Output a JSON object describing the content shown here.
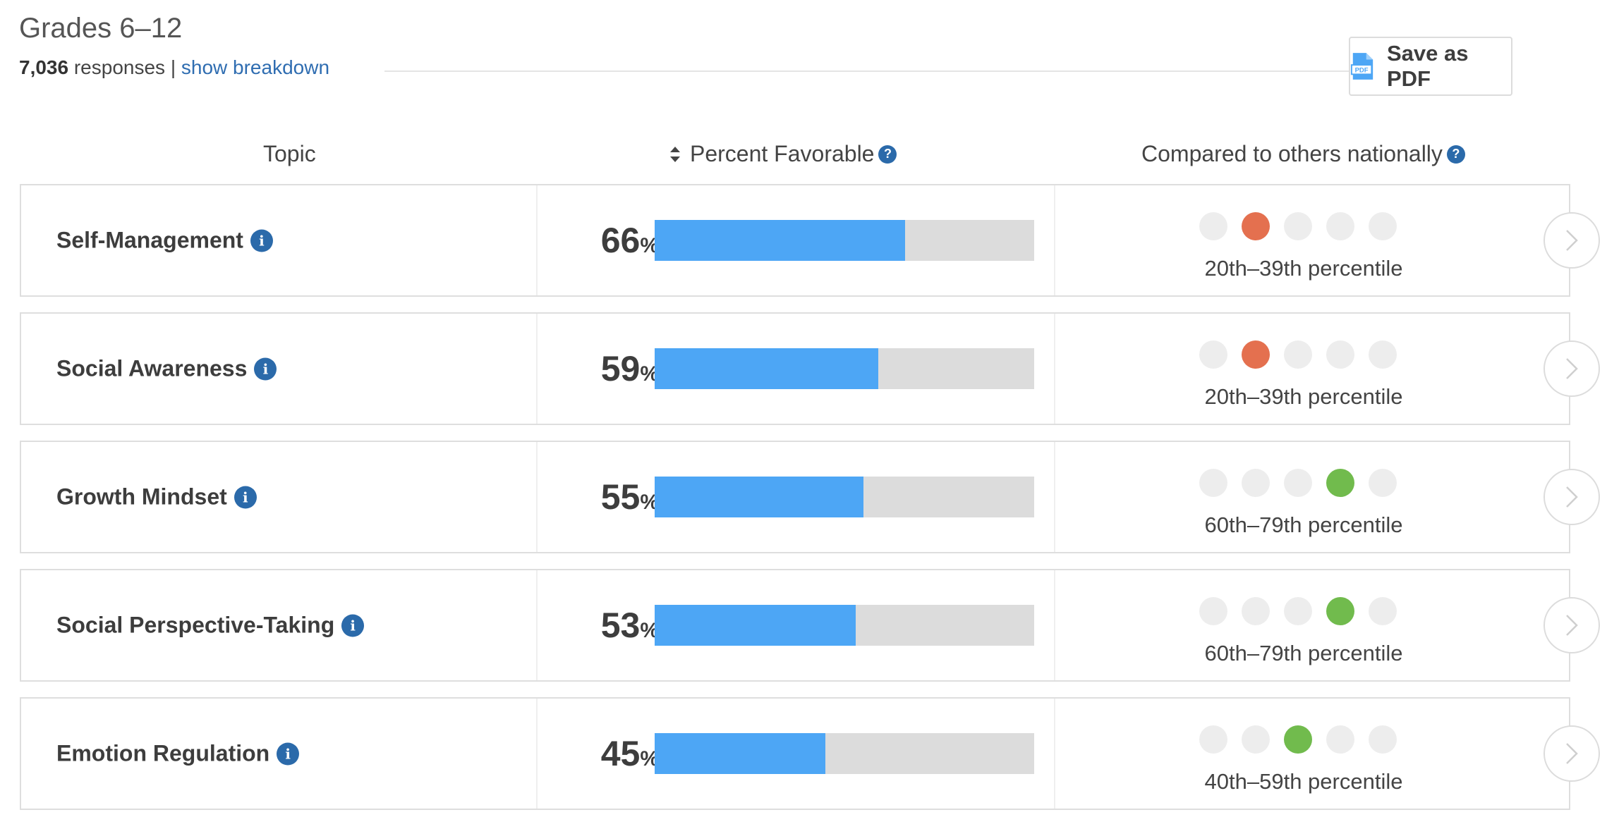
{
  "header": {
    "title": "Grades 6–12",
    "response_count": "7,036",
    "responses_label": "responses",
    "separator": "|",
    "breakdown_link": "show breakdown",
    "pdf_button_label": "Save as PDF"
  },
  "columns": {
    "topic": "Topic",
    "percent_favorable": "Percent Favorable",
    "compared": "Compared to others nationally"
  },
  "colors": {
    "bar": "#4da6f5",
    "below": "#e4704f",
    "above": "#71bb4d",
    "info": "#2b6aaa"
  },
  "rows": [
    {
      "topic": "Self-Management",
      "percent": "66",
      "value": 66,
      "dot_index": 1,
      "dot_color": "red",
      "percentile": "20th–39th percentile"
    },
    {
      "topic": "Social Awareness",
      "percent": "59",
      "value": 59,
      "dot_index": 1,
      "dot_color": "red",
      "percentile": "20th–39th percentile"
    },
    {
      "topic": "Growth Mindset",
      "percent": "55",
      "value": 55,
      "dot_index": 3,
      "dot_color": "green",
      "percentile": "60th–79th percentile"
    },
    {
      "topic": "Social Perspective-Taking",
      "percent": "53",
      "value": 53,
      "dot_index": 3,
      "dot_color": "green",
      "percentile": "60th–79th percentile"
    },
    {
      "topic": "Emotion Regulation",
      "percent": "45",
      "value": 45,
      "dot_index": 2,
      "dot_color": "green",
      "percentile": "40th–59th percentile"
    }
  ]
}
